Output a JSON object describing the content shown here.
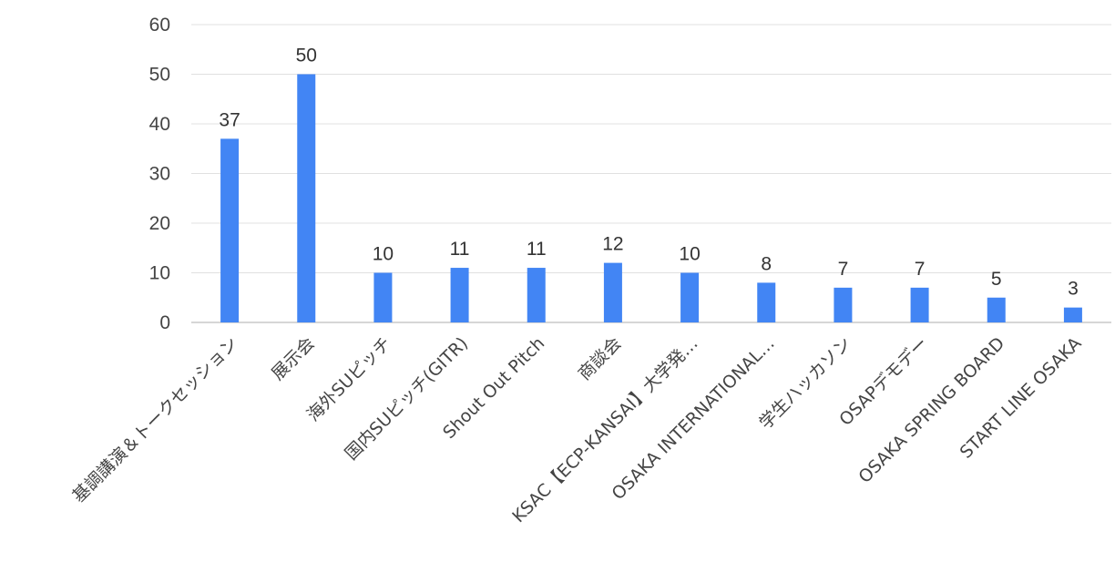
{
  "chart_data": {
    "type": "bar",
    "title": "",
    "xlabel": "",
    "ylabel": "",
    "ylim": [
      0,
      60
    ],
    "yticks": [
      0,
      10,
      20,
      30,
      40,
      50,
      60
    ],
    "grid": true,
    "legend": "none",
    "bar_color": "#4285f4",
    "categories": [
      "基調講演＆トークセッション",
      "展示会",
      "海外SUピッチ",
      "国内SUピッチ(GITR)",
      "Shout Out Pitch",
      "商談会",
      "KSAC【ECP-KANSAI】大学発…",
      "OSAKA INTERNATIONAL…",
      "学生ハッカソン",
      "OSAPデモデー",
      "OSAKA SPRING BOARD",
      "START LINE OSAKA"
    ],
    "values": [
      37,
      50,
      10,
      11,
      11,
      12,
      10,
      8,
      7,
      7,
      5,
      3
    ],
    "data_labels": [
      "37",
      "50",
      "10",
      "11",
      "11",
      "12",
      "10",
      "8",
      "7",
      "7",
      "5",
      "3"
    ]
  }
}
